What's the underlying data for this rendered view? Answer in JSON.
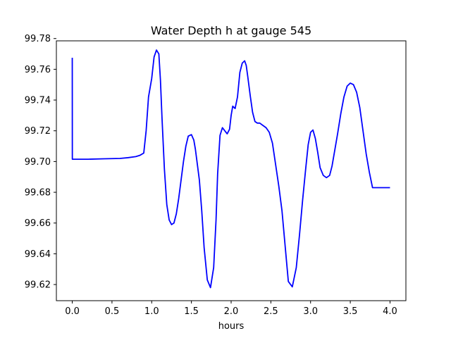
{
  "chart_data": {
    "type": "line",
    "title": "Water Depth h at gauge 545",
    "xlabel": "hours",
    "ylabel": "",
    "xlim": [
      -0.2,
      4.2
    ],
    "ylim": [
      99.6095,
      99.7785
    ],
    "xticks": [
      0.0,
      0.5,
      1.0,
      1.5,
      2.0,
      2.5,
      3.0,
      3.5,
      4.0
    ],
    "xtick_labels": [
      "0.0",
      "0.5",
      "1.0",
      "1.5",
      "2.0",
      "2.5",
      "3.0",
      "3.5",
      "4.0"
    ],
    "yticks": [
      99.62,
      99.64,
      99.66,
      99.68,
      99.7,
      99.72,
      99.74,
      99.76,
      99.78
    ],
    "ytick_labels": [
      "99.62",
      "99.64",
      "99.66",
      "99.68",
      "99.70",
      "99.72",
      "99.74",
      "99.76",
      "99.78"
    ],
    "grid": false,
    "legend": "none",
    "color": "#0000ff",
    "series": [
      {
        "x": [
          0.0,
          0.001,
          0.05,
          0.2,
          0.4,
          0.6,
          0.7,
          0.8,
          0.85,
          0.9,
          0.93,
          0.96,
          1.0,
          1.03,
          1.06,
          1.09,
          1.11,
          1.13,
          1.16,
          1.19,
          1.22,
          1.25,
          1.28,
          1.31,
          1.34,
          1.37,
          1.4,
          1.43,
          1.46,
          1.5,
          1.53,
          1.55,
          1.57,
          1.6,
          1.63,
          1.66,
          1.7,
          1.74,
          1.78,
          1.81,
          1.83,
          1.86,
          1.89,
          1.92,
          1.95,
          1.98,
          2.0,
          2.02,
          2.05,
          2.08,
          2.11,
          2.14,
          2.17,
          2.19,
          2.21,
          2.24,
          2.27,
          2.3,
          2.33,
          2.36,
          2.4,
          2.44,
          2.48,
          2.52,
          2.56,
          2.6,
          2.64,
          2.68,
          2.72,
          2.77,
          2.82,
          2.86,
          2.9,
          2.94,
          2.97,
          3.0,
          3.03,
          3.06,
          3.09,
          3.12,
          3.16,
          3.2,
          3.24,
          3.27,
          3.3,
          3.34,
          3.38,
          3.42,
          3.46,
          3.5,
          3.54,
          3.58,
          3.62,
          3.66,
          3.7,
          3.74,
          3.78,
          3.82,
          3.86,
          3.9,
          3.94,
          3.98,
          4.0
        ],
        "y": [
          99.7675,
          99.7015,
          99.7015,
          99.7015,
          99.7018,
          99.702,
          99.7025,
          99.7032,
          99.704,
          99.7055,
          99.72,
          99.742,
          99.754,
          99.768,
          99.7725,
          99.77,
          99.753,
          99.728,
          99.695,
          99.672,
          99.662,
          99.659,
          99.66,
          99.666,
          99.676,
          99.688,
          99.7,
          99.71,
          99.7165,
          99.7175,
          99.714,
          99.708,
          99.7,
          99.688,
          99.668,
          99.644,
          99.623,
          99.618,
          99.631,
          99.662,
          99.692,
          99.717,
          99.722,
          99.72,
          99.718,
          99.721,
          99.73,
          99.736,
          99.7345,
          99.742,
          99.758,
          99.764,
          99.7655,
          99.7625,
          99.755,
          99.743,
          99.732,
          99.726,
          99.725,
          99.725,
          99.7235,
          99.722,
          99.719,
          99.712,
          99.698,
          99.684,
          99.668,
          99.645,
          99.622,
          99.6185,
          99.631,
          99.652,
          99.675,
          99.696,
          99.711,
          99.719,
          99.7205,
          99.715,
          99.706,
          99.696,
          99.691,
          99.6895,
          99.691,
          99.697,
          99.706,
          99.718,
          99.731,
          99.742,
          99.749,
          99.751,
          99.75,
          99.745,
          99.735,
          99.72,
          99.705,
          99.693,
          99.683,
          99.683,
          99.683,
          99.683,
          99.683,
          99.683,
          99.683
        ]
      }
    ]
  }
}
